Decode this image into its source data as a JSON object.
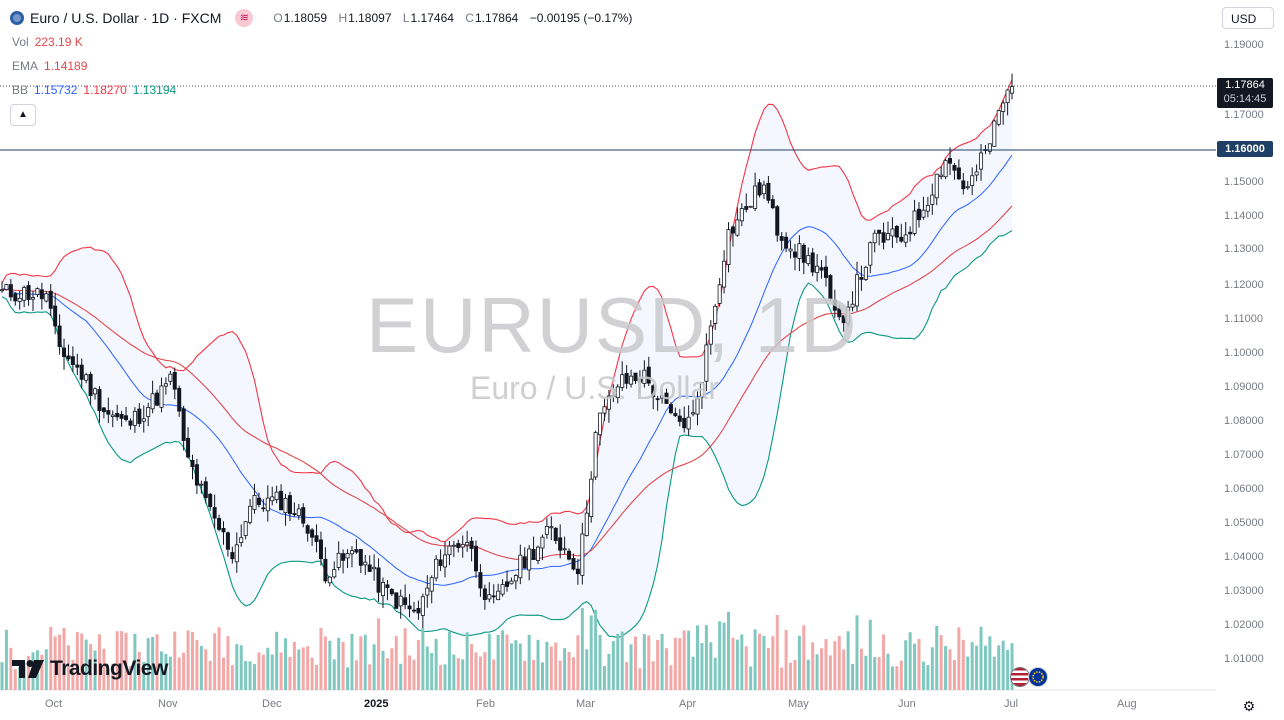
{
  "header": {
    "symbol_title": "Euro / U.S. Dollar · 1D · FXCM",
    "session_icon": "bars-icon",
    "ohlc": {
      "open_key": "O",
      "open": "1.18059",
      "high_key": "H",
      "high": "1.18097",
      "low_key": "L",
      "low": "1.17464",
      "close_key": "C",
      "close": "1.17864",
      "change": "−0.00195 (−0.17%)"
    }
  },
  "indicators": {
    "vol": {
      "label": "Vol",
      "value": "223.19 K"
    },
    "ema": {
      "label": "EMA",
      "value": "1.14189"
    },
    "bb": {
      "label": "BB",
      "basis": "1.15732",
      "upper": "1.18270",
      "lower": "1.13194"
    }
  },
  "currency_button": "USD",
  "price_axis": {
    "ticks": [
      "1.19000",
      "1.17000",
      "1.15000",
      "1.14000",
      "1.13000",
      "1.12000",
      "1.11000",
      "1.10000",
      "1.09000",
      "1.08000",
      "1.07000",
      "1.06000",
      "1.05000",
      "1.04000",
      "1.03000",
      "1.02000",
      "1.01000"
    ],
    "last_price": "1.17864",
    "countdown": "05:14:45",
    "level_label": "1.16000"
  },
  "time_axis": {
    "ticks": [
      "Oct",
      "Nov",
      "Dec",
      "2025",
      "Feb",
      "Mar",
      "Apr",
      "May",
      "Jun",
      "Jul",
      "Aug"
    ]
  },
  "watermark": {
    "symbol": "EURUSD, 1D",
    "description": "Euro / U.S. Dollar"
  },
  "branding": {
    "logo_text": "TradingView"
  },
  "colors": {
    "up": "#089981",
    "down": "#131722",
    "ema": "#e0474c",
    "bb_basis": "#2962ff",
    "bb_upper": "#f23645",
    "bb_lower": "#089981",
    "vol_up": "#7fc8bf",
    "vol_down": "#f1a8a7",
    "level_line": "#1f3f66"
  },
  "chart_data": {
    "type": "candlestick",
    "title": "Euro / U.S. Dollar · 1D · FXCM",
    "x_ticks": [
      "Oct",
      "Nov",
      "Dec",
      "2025",
      "Feb",
      "Mar",
      "Apr",
      "May",
      "Jun",
      "Jul",
      "Aug"
    ],
    "ylim": [
      1.0,
      1.195
    ],
    "horizontal_level": 1.16,
    "last_close": 1.17864,
    "close_path": [
      {
        "t": "2024-09-24",
        "v": 1.118
      },
      {
        "t": "2024-09-30",
        "v": 1.117
      },
      {
        "t": "2024-10-03",
        "v": 1.103
      },
      {
        "t": "2024-10-10",
        "v": 1.094
      },
      {
        "t": "2024-10-17",
        "v": 1.083
      },
      {
        "t": "2024-10-23",
        "v": 1.079
      },
      {
        "t": "2024-10-31",
        "v": 1.087
      },
      {
        "t": "2024-11-05",
        "v": 1.093
      },
      {
        "t": "2024-11-08",
        "v": 1.072
      },
      {
        "t": "2024-11-15",
        "v": 1.054
      },
      {
        "t": "2024-11-22",
        "v": 1.041
      },
      {
        "t": "2024-11-27",
        "v": 1.056
      },
      {
        "t": "2024-12-06",
        "v": 1.057
      },
      {
        "t": "2024-12-13",
        "v": 1.05
      },
      {
        "t": "2024-12-18",
        "v": 1.036
      },
      {
        "t": "2024-12-27",
        "v": 1.042
      },
      {
        "t": "2025-01-03",
        "v": 1.031
      },
      {
        "t": "2025-01-13",
        "v": 1.023
      },
      {
        "t": "2025-01-20",
        "v": 1.041
      },
      {
        "t": "2025-01-27",
        "v": 1.046
      },
      {
        "t": "2025-02-03",
        "v": 1.025
      },
      {
        "t": "2025-02-12",
        "v": 1.039
      },
      {
        "t": "2025-02-20",
        "v": 1.048
      },
      {
        "t": "2025-02-28",
        "v": 1.037
      },
      {
        "t": "2025-03-05",
        "v": 1.079
      },
      {
        "t": "2025-03-11",
        "v": 1.091
      },
      {
        "t": "2025-03-18",
        "v": 1.094
      },
      {
        "t": "2025-03-27",
        "v": 1.08
      },
      {
        "t": "2025-04-01",
        "v": 1.08
      },
      {
        "t": "2025-04-04",
        "v": 1.095
      },
      {
        "t": "2025-04-11",
        "v": 1.135
      },
      {
        "t": "2025-04-21",
        "v": 1.15
      },
      {
        "t": "2025-04-25",
        "v": 1.137
      },
      {
        "t": "2025-05-01",
        "v": 1.13
      },
      {
        "t": "2025-05-08",
        "v": 1.124
      },
      {
        "t": "2025-05-12",
        "v": 1.108
      },
      {
        "t": "2025-05-16",
        "v": 1.116
      },
      {
        "t": "2025-05-23",
        "v": 1.134
      },
      {
        "t": "2025-05-30",
        "v": 1.134
      },
      {
        "t": "2025-06-05",
        "v": 1.142
      },
      {
        "t": "2025-06-12",
        "v": 1.158
      },
      {
        "t": "2025-06-18",
        "v": 1.148
      },
      {
        "t": "2025-06-24",
        "v": 1.161
      },
      {
        "t": "2025-06-27",
        "v": 1.171
      },
      {
        "t": "2025-07-01",
        "v": 1.18
      },
      {
        "t": "2025-07-02",
        "v": 1.17864
      }
    ],
    "indicator_values": {
      "ema": 1.14189,
      "bb_basis": 1.15732,
      "bb_upper": 1.1827,
      "bb_lower": 1.13194,
      "volume_last": "223.19 K"
    }
  }
}
